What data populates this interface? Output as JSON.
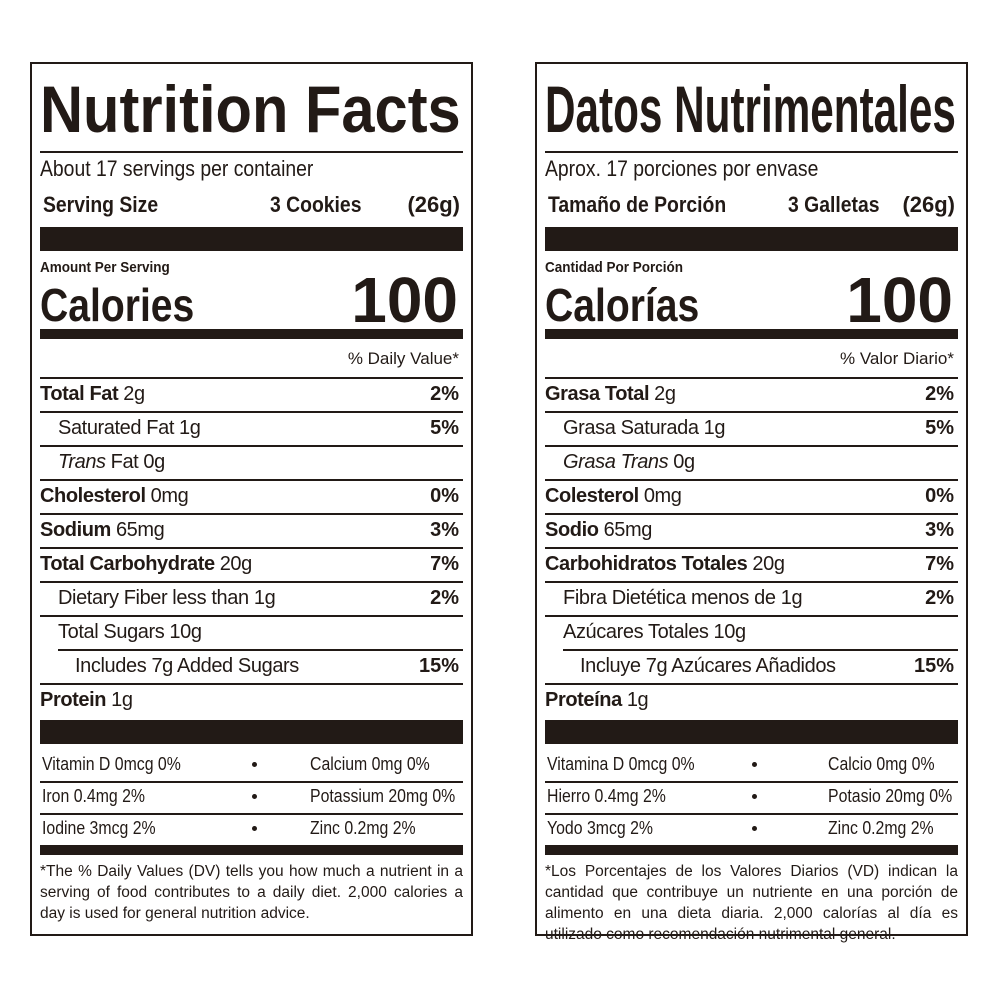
{
  "left": {
    "title": "Nutrition Facts",
    "servings": "About 17 servings per container",
    "serving_size_label": "Serving Size",
    "serving_size_value": "3 Cookies",
    "serving_size_grams": "(26g)",
    "amount_per_serving": "Amount Per Serving",
    "calories_label": "Calories",
    "calories_value": "100",
    "dv_header": "% Daily Value*",
    "nutrients": [
      {
        "name": "Total Fat",
        "amount": "2g",
        "dv": "2%"
      },
      {
        "name": "Saturated Fat",
        "amount": "1g",
        "dv": "5%"
      },
      {
        "name_italic": "Trans",
        "name": "Fat",
        "amount": "0g"
      },
      {
        "name": "Cholesterol",
        "amount": "0mg",
        "dv": "0%"
      },
      {
        "name": "Sodium",
        "amount": "65mg",
        "dv": "3%"
      },
      {
        "name": "Total Carbohydrate",
        "amount": "20g",
        "dv": "7%"
      },
      {
        "name": "Dietary Fiber",
        "amount": "less than 1g",
        "dv": "2%"
      },
      {
        "name": "Total Sugars",
        "amount": "10g"
      },
      {
        "name": "Includes 7g Added Sugars",
        "dv": "15%"
      },
      {
        "name": "Protein",
        "amount": "1g"
      }
    ],
    "vitamins": [
      [
        "Vitamin D 0mcg 0%",
        "Calcium 0mg 0%"
      ],
      [
        "Iron 0.4mg 2%",
        "Potassium 20mg 0%"
      ],
      [
        "Iodine 3mcg 2%",
        "Zinc 0.2mg 2%"
      ]
    ],
    "footnote": "*The % Daily Values (DV) tells you how much a nutrient in a serving of food contributes to a daily diet. 2,000 calories a day is used for general nutrition advice."
  },
  "right": {
    "title": "Datos Nutrimentales",
    "servings": "Aprox. 17 porciones por envase",
    "serving_size_label": "Tamaño de Porción",
    "serving_size_value": "3 Galletas",
    "serving_size_grams": "(26g)",
    "amount_per_serving": "Cantidad Por Porción",
    "calories_label": "Calorías",
    "calories_value": "100",
    "dv_header": "% Valor Diario*",
    "nutrients": [
      {
        "name": "Grasa Total",
        "amount": "2g",
        "dv": "2%"
      },
      {
        "name": "Grasa Saturada",
        "amount": "1g",
        "dv": "5%"
      },
      {
        "name_italic": "Grasa Trans",
        "amount": "0g"
      },
      {
        "name": "Colesterol",
        "amount": "0mg",
        "dv": "0%"
      },
      {
        "name": "Sodio",
        "amount": "65mg",
        "dv": "3%"
      },
      {
        "name": "Carbohidratos Totales",
        "amount": "20g",
        "dv": "7%"
      },
      {
        "name": "Fibra Dietética",
        "amount": "menos de 1g",
        "dv": "2%"
      },
      {
        "name": "Azúcares Totales",
        "amount": "10g"
      },
      {
        "name": "Incluye 7g Azúcares Añadidos",
        "dv": "15%"
      },
      {
        "name": "Proteína",
        "amount": "1g"
      }
    ],
    "vitamins": [
      [
        "Vitamina D 0mcg 0%",
        "Calcio 0mg 0%"
      ],
      [
        "Hierro 0.4mg 2%",
        "Potasio 20mg 0%"
      ],
      [
        "Yodo 3mcg 2%",
        "Zinc 0.2mg 2%"
      ]
    ],
    "footnote": "*Los Porcentajes de los Valores Diarios (VD) indican la cantidad que contribuye un nutriente en una porción de alimento en una dieta diaria. 2,000 calorías al día es utilizado como recomendación nutrimental general."
  }
}
